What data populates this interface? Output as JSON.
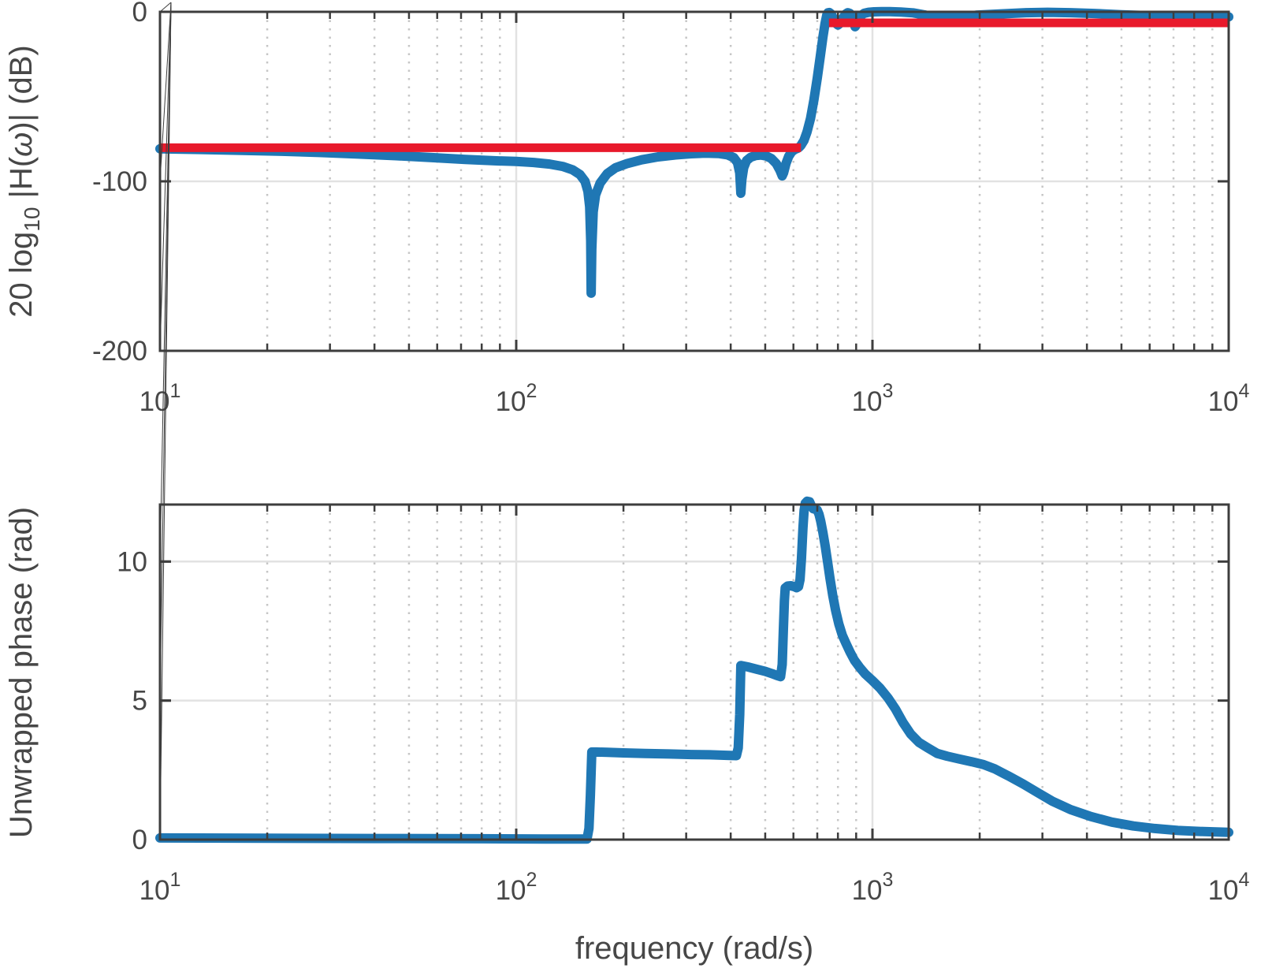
{
  "figure": {
    "background": "#ffffff",
    "colors": {
      "curve_blue": "#1f77b4",
      "target_red": "#e8192b",
      "axis": "#3d3d3d",
      "text": "#474747",
      "grid_major": "#e2e2e2",
      "grid_minor": "#c6c6c6"
    }
  },
  "chart_data": [
    {
      "type": "line",
      "id": "magnitude-response",
      "xscale": "log",
      "xlim": [
        10,
        10000
      ],
      "ylim": [
        -200,
        0
      ],
      "grid": "major solid on, log-minor dotted vertical on",
      "legend": "none",
      "xlabel": "",
      "ylabel": "20 log10 |H(ω)| (dB)",
      "ylabel_parts": [
        {
          "t": "20 log"
        },
        {
          "t": "10",
          "sub": true
        },
        {
          "t": " |H("
        },
        {
          "t": "ω",
          "italic": true
        },
        {
          "t": ")| (dB)"
        }
      ],
      "xticks": [
        10,
        100,
        1000,
        10000
      ],
      "xtick_labels": [
        {
          "base": "10",
          "exp": "1"
        },
        {
          "base": "10",
          "exp": "2"
        },
        {
          "base": "10",
          "exp": "3"
        },
        {
          "base": "10",
          "exp": "4"
        }
      ],
      "yticks": [
        0,
        -100,
        -200
      ],
      "ytick_labels": [
        "0",
        "-100",
        "-200"
      ],
      "series": [
        {
          "name": "filter-magnitude-dB",
          "color": "#1f77b4",
          "linewidth": 12,
          "points": [
            [
              10,
              -80.8
            ],
            [
              13,
              -81.2
            ],
            [
              17,
              -81.7
            ],
            [
              22,
              -82.3
            ],
            [
              28,
              -83
            ],
            [
              36,
              -83.9
            ],
            [
              46,
              -84.9
            ],
            [
              58,
              -86
            ],
            [
              72,
              -87.1
            ],
            [
              88,
              -87.9
            ],
            [
              100,
              -88.3
            ],
            [
              112,
              -88.9
            ],
            [
              124,
              -89.8
            ],
            [
              135,
              -91.2
            ],
            [
              144,
              -93.2
            ],
            [
              151,
              -96
            ],
            [
              156,
              -100
            ],
            [
              159,
              -106
            ],
            [
              160.8,
              -115
            ],
            [
              161.8,
              -135
            ],
            [
              162.3,
              -166
            ],
            [
              163,
              -140
            ],
            [
              164.5,
              -118
            ],
            [
              167,
              -108
            ],
            [
              172,
              -101
            ],
            [
              180,
              -95.5
            ],
            [
              190,
              -92
            ],
            [
              205,
              -89.5
            ],
            [
              225,
              -87.3
            ],
            [
              250,
              -85.6
            ],
            [
              280,
              -84.4
            ],
            [
              310,
              -83.7
            ],
            [
              340,
              -83.4
            ],
            [
              370,
              -83.6
            ],
            [
              392,
              -84.4
            ],
            [
              408,
              -86
            ],
            [
              418,
              -89
            ],
            [
              424,
              -95
            ],
            [
              427,
              -107
            ],
            [
              430,
              -99
            ],
            [
              435,
              -92
            ],
            [
              443,
              -87.8
            ],
            [
              455,
              -85.8
            ],
            [
              470,
              -84.8
            ],
            [
              487,
              -84.5
            ],
            [
              503,
              -85
            ],
            [
              520,
              -86.5
            ],
            [
              537,
              -89.5
            ],
            [
              550,
              -93.5
            ],
            [
              558,
              -96.8
            ],
            [
              563,
              -95
            ],
            [
              572,
              -89.5
            ],
            [
              582,
              -85.3
            ],
            [
              593,
              -82.6
            ],
            [
              605,
              -81.2
            ],
            [
              615,
              -80.6
            ],
            [
              622,
              -80
            ],
            [
              630,
              -78.8
            ],
            [
              642,
              -76
            ],
            [
              655,
              -71
            ],
            [
              670,
              -63
            ],
            [
              685,
              -52
            ],
            [
              700,
              -39
            ],
            [
              714,
              -26
            ],
            [
              726,
              -15
            ],
            [
              736,
              -7
            ],
            [
              744,
              -2
            ],
            [
              750,
              -0.6
            ],
            [
              757,
              -0.4
            ],
            [
              765,
              -1.2
            ],
            [
              776,
              -3.6
            ],
            [
              790,
              -6.8
            ],
            [
              800,
              -7.8
            ],
            [
              810,
              -6.9
            ],
            [
              824,
              -4
            ],
            [
              840,
              -1.4
            ],
            [
              852,
              -0.5
            ],
            [
              865,
              -1
            ],
            [
              877,
              -3
            ],
            [
              887,
              -6.5
            ],
            [
              894,
              -8.8
            ],
            [
              902,
              -7.5
            ],
            [
              913,
              -4.6
            ],
            [
              928,
              -2.2
            ],
            [
              948,
              -0.9
            ],
            [
              975,
              -0.3
            ],
            [
              1010,
              0
            ],
            [
              1060,
              0.1
            ],
            [
              1120,
              0.1
            ],
            [
              1200,
              -0.1
            ],
            [
              1300,
              -0.6
            ],
            [
              1400,
              -1.8
            ],
            [
              1470,
              -2.8
            ],
            [
              1540,
              -3.4
            ],
            [
              1620,
              -3.3
            ],
            [
              1750,
              -2.8
            ],
            [
              1950,
              -2
            ],
            [
              2300,
              -1.2
            ],
            [
              2700,
              -0.5
            ],
            [
              3100,
              -0.3
            ],
            [
              3600,
              -0.5
            ],
            [
              4200,
              -1
            ],
            [
              5000,
              -1.7
            ],
            [
              6000,
              -2.3
            ],
            [
              7200,
              -2.7
            ],
            [
              8500,
              -2.9
            ],
            [
              10000,
              -3
            ]
          ]
        },
        {
          "name": "target-stopband-level-dB",
          "color": "#e8192b",
          "linewidth": 11,
          "points": [
            [
              10,
              -80.2
            ],
            [
              630,
              -80.2
            ]
          ]
        },
        {
          "name": "target-passband-level-dB",
          "color": "#e8192b",
          "linewidth": 11,
          "points": [
            [
              755,
              -6.5
            ],
            [
              10000,
              -6.5
            ]
          ]
        }
      ]
    },
    {
      "type": "line",
      "id": "unwrapped-phase",
      "xscale": "log",
      "xlim": [
        10,
        10000
      ],
      "ylim": [
        0,
        12.05
      ],
      "grid": "major solid on, log-minor dotted vertical on",
      "legend": "none",
      "xlabel": "frequency (rad/s)",
      "ylabel": "Unwrapped phase (rad)",
      "xticks": [
        10,
        100,
        1000,
        10000
      ],
      "xtick_labels": [
        {
          "base": "10",
          "exp": "1"
        },
        {
          "base": "10",
          "exp": "2"
        },
        {
          "base": "10",
          "exp": "3"
        },
        {
          "base": "10",
          "exp": "4"
        }
      ],
      "yticks": [
        0,
        5,
        10
      ],
      "ytick_labels": [
        "0",
        "5",
        "10"
      ],
      "series": [
        {
          "name": "unwrapped-phase-rad",
          "color": "#1f77b4",
          "linewidth": 12,
          "points": [
            [
              10,
              0.06
            ],
            [
              40,
              0.04
            ],
            [
              80,
              0.03
            ],
            [
              120,
              0.02
            ],
            [
              150,
              0.02
            ],
            [
              158,
              0.02
            ],
            [
              160,
              0.4
            ],
            [
              161.5,
              1.6
            ],
            [
              163,
              3.15
            ],
            [
              168,
              3.15
            ],
            [
              180,
              3.14
            ],
            [
              200,
              3.12
            ],
            [
              230,
              3.1
            ],
            [
              270,
              3.08
            ],
            [
              310,
              3.06
            ],
            [
              350,
              3.05
            ],
            [
              390,
              3.03
            ],
            [
              415,
              3.02
            ],
            [
              420,
              3.3
            ],
            [
              424,
              4.5
            ],
            [
              427,
              6.26
            ],
            [
              432,
              6.25
            ],
            [
              450,
              6.2
            ],
            [
              475,
              6.12
            ],
            [
              500,
              6.05
            ],
            [
              522,
              5.97
            ],
            [
              540,
              5.9
            ],
            [
              552,
              5.86
            ],
            [
              558,
              6.3
            ],
            [
              562,
              7.5
            ],
            [
              566,
              8.6
            ],
            [
              569,
              9.05
            ],
            [
              578,
              9.12
            ],
            [
              590,
              9.13
            ],
            [
              602,
              9.1
            ],
            [
              612,
              9.06
            ],
            [
              620,
              9.1
            ],
            [
              626,
              9.35
            ],
            [
              632,
              10.1
            ],
            [
              638,
              11.2
            ],
            [
              643,
              11.85
            ],
            [
              648,
              12.1
            ],
            [
              656,
              12.17
            ],
            [
              666,
              12.15
            ],
            [
              674,
              12.0
            ],
            [
              682,
              11.9
            ],
            [
              692,
              11.88
            ],
            [
              700,
              11.85
            ],
            [
              708,
              11.7
            ],
            [
              716,
              11.45
            ],
            [
              726,
              11.05
            ],
            [
              737,
              10.55
            ],
            [
              748,
              10.0
            ],
            [
              760,
              9.4
            ],
            [
              773,
              8.8
            ],
            [
              788,
              8.25
            ],
            [
              805,
              7.75
            ],
            [
              823,
              7.35
            ],
            [
              843,
              7.05
            ],
            [
              865,
              6.75
            ],
            [
              890,
              6.45
            ],
            [
              920,
              6.2
            ],
            [
              955,
              5.95
            ],
            [
              1000,
              5.72
            ],
            [
              1050,
              5.45
            ],
            [
              1105,
              5.1
            ],
            [
              1160,
              4.7
            ],
            [
              1220,
              4.2
            ],
            [
              1280,
              3.8
            ],
            [
              1350,
              3.5
            ],
            [
              1430,
              3.3
            ],
            [
              1520,
              3.1
            ],
            [
              1620,
              3.0
            ],
            [
              1750,
              2.9
            ],
            [
              1900,
              2.8
            ],
            [
              2050,
              2.7
            ],
            [
              2200,
              2.55
            ],
            [
              2400,
              2.3
            ],
            [
              2650,
              2.0
            ],
            [
              2900,
              1.7
            ],
            [
              3200,
              1.38
            ],
            [
              3600,
              1.08
            ],
            [
              4100,
              0.83
            ],
            [
              4700,
              0.63
            ],
            [
              5400,
              0.49
            ],
            [
              6200,
              0.4
            ],
            [
              7200,
              0.33
            ],
            [
              8500,
              0.29
            ],
            [
              10000,
              0.26
            ]
          ]
        }
      ]
    }
  ]
}
